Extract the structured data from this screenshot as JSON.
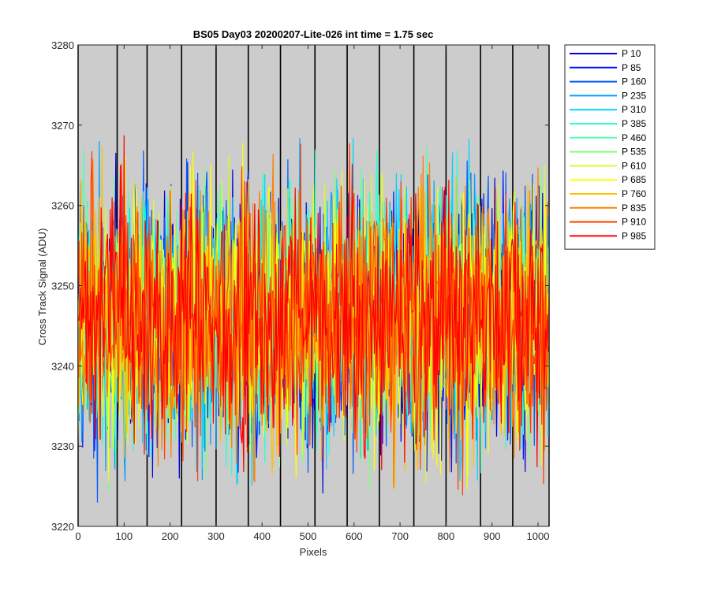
{
  "chart_data": {
    "type": "line",
    "title": "BS05 Day03 20200207-Lite-026 int time = 1.75 sec",
    "xlabel": "Pixels",
    "ylabel": "Cross Track Signal (ADU)",
    "xlim": [
      0,
      1024
    ],
    "ylim": [
      3220,
      3280
    ],
    "xticks": [
      0,
      100,
      200,
      300,
      400,
      500,
      600,
      700,
      800,
      900,
      1000
    ],
    "yticks": [
      3220,
      3230,
      3240,
      3250,
      3260,
      3270,
      3280
    ],
    "plot_background": "#cccccc",
    "grid": false,
    "legend_position": "outside-top-right",
    "vertical_markers_x": [
      0,
      85,
      150,
      225,
      300,
      370,
      440,
      515,
      585,
      655,
      730,
      800,
      875,
      945,
      1024
    ],
    "series_summary": {
      "center": 3246,
      "typical_noise_range": [
        3230,
        3262
      ],
      "extreme_range": [
        3220,
        3273
      ]
    },
    "series": [
      {
        "name": "P 10",
        "color": "#0000d6"
      },
      {
        "name": "P 85",
        "color": "#0014ff"
      },
      {
        "name": "P 160",
        "color": "#005aff"
      },
      {
        "name": "P 235",
        "color": "#00a0ff"
      },
      {
        "name": "P 310",
        "color": "#00d4ff"
      },
      {
        "name": "P 385",
        "color": "#2affd4"
      },
      {
        "name": "P 460",
        "color": "#55ffaa"
      },
      {
        "name": "P 535",
        "color": "#80ff80"
      },
      {
        "name": "P 610",
        "color": "#d4ff2a"
      },
      {
        "name": "P 685",
        "color": "#ffff00"
      },
      {
        "name": "P 760",
        "color": "#ffc000"
      },
      {
        "name": "P 835",
        "color": "#ff8000"
      },
      {
        "name": "P 910",
        "color": "#ff4000"
      },
      {
        "name": "P 985",
        "color": "#ff0000"
      }
    ]
  }
}
